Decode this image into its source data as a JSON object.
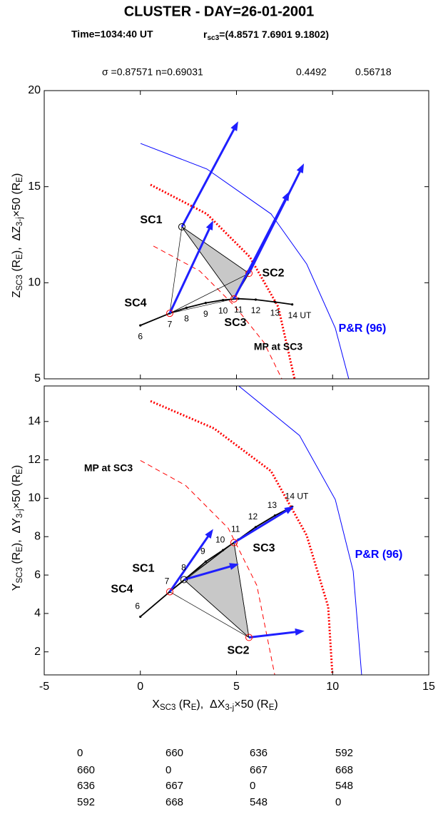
{
  "header": {
    "title": "CLUSTER - DAY=26-01-2001",
    "time": "Time=1034:40 UT",
    "position": [
      "r",
      "sc3",
      "=(4.8571 7.6901 9.1802)"
    ],
    "parameters": [
      "σ =0.87571 n=0.69031",
      "0.4492",
      "0.56718"
    ]
  },
  "chart_data": [
    {
      "type": "scatter",
      "xlim": [
        -5,
        15
      ],
      "ylim": [
        5,
        20
      ],
      "xticks": [
        -5,
        0,
        5,
        10,
        15
      ],
      "yticks": [
        5,
        10,
        15,
        20
      ],
      "xtick_labels": false,
      "ylabel": [
        "Z",
        "SC3",
        " (R",
        "E",
        "),  ΔZ",
        "3-j",
        "×50 (R",
        "E",
        ")"
      ],
      "vector_color": "#1f1fff",
      "spacecraft": [
        {
          "name": "SC1",
          "color": "#000000",
          "x": 2.16,
          "y": 12.91,
          "vector_x": 5.09,
          "vector_y": 18.4
        },
        {
          "name": "SC2",
          "color": "#ff0000",
          "x": 5.65,
          "y": 10.49,
          "vector_x": 8.51,
          "vector_y": 16.21
        },
        {
          "name": "SC3",
          "color": "#ff0000",
          "x": 4.87,
          "y": 9.16,
          "vector_x": 7.76,
          "vector_y": 14.76
        },
        {
          "name": "SC4",
          "color": "#ff0000",
          "x": 1.53,
          "y": 8.41,
          "vector_x": 3.79,
          "vector_y": 13.24
        }
      ],
      "trajectory": {
        "labels": [
          "6",
          "7",
          "8",
          "9",
          "10",
          "11",
          "12",
          "13",
          "14 UT"
        ],
        "x": [
          0,
          1.53,
          2.4,
          3.4,
          4.3,
          5.1,
          6.0,
          7.0,
          7.9
        ],
        "y": [
          7.78,
          8.41,
          8.7,
          8.95,
          9.1,
          9.17,
          9.12,
          9.0,
          8.87
        ]
      },
      "boundaries": [
        {
          "name": "P&R (96)",
          "color": "#0000ff",
          "label_color": "#0000ff",
          "style": "solid",
          "x": [
            0.01,
            3.46,
            6.8,
            8.65,
            10.14,
            10.84
          ],
          "y": [
            17.25,
            15.92,
            13.58,
            10.98,
            7.64,
            5.0
          ]
        },
        {
          "name": "MP at SC3",
          "color": "#ff0000",
          "label_color": "#000000",
          "style": "dashed",
          "x": [
            0.68,
            3.09,
            4.94,
            6.43,
            7.36
          ],
          "y": [
            11.91,
            10.61,
            8.75,
            6.89,
            5.0
          ]
        },
        {
          "color": "#ff0000",
          "style": "dotted",
          "x": [
            0.53,
            3.46,
            5.69,
            7.17,
            8.02
          ],
          "y": [
            15.1,
            13.58,
            11.35,
            8.75,
            5.0
          ]
        }
      ]
    },
    {
      "type": "scatter",
      "xlim": [
        -5,
        15
      ],
      "ylim": [
        0.8,
        15.85
      ],
      "xticks": [
        -5,
        0,
        5,
        10,
        15
      ],
      "yticks": [
        2,
        4,
        6,
        8,
        10,
        12,
        14
      ],
      "xtick_labels": true,
      "ylabel": [
        "Y",
        "SC3",
        " (R",
        "E",
        "),  ΔY",
        "3-j",
        "×50 (R",
        "E",
        ")"
      ],
      "xlabel": [
        "X",
        "SC3",
        " (R",
        "E",
        "),  ΔX",
        "3-j",
        "×50 (R",
        "E",
        ")"
      ],
      "vector_color": "#1f1fff",
      "spacecraft": [
        {
          "name": "SC1",
          "color": "#000000",
          "x": 2.27,
          "y": 5.76,
          "vector_x": 5.13,
          "vector_y": 6.58
        },
        {
          "name": "SC2",
          "color": "#ff0000",
          "x": 5.65,
          "y": 2.75,
          "vector_x": 8.54,
          "vector_y": 3.09
        },
        {
          "name": "SC3",
          "color": "#ff0000",
          "x": 4.87,
          "y": 7.69,
          "vector_x": 7.99,
          "vector_y": 9.59
        },
        {
          "name": "SC4",
          "color": "#ff0000",
          "x": 1.53,
          "y": 5.13,
          "vector_x": 3.79,
          "vector_y": 8.4
        }
      ],
      "trajectory": {
        "labels": [
          "6",
          "7",
          "8",
          "9",
          "10",
          "11",
          "12",
          "13",
          "14 UT"
        ],
        "x": [
          0,
          1.53,
          2.4,
          3.4,
          4.3,
          5.1,
          6.0,
          7.0,
          7.9
        ],
        "y": [
          3.83,
          5.13,
          5.85,
          6.7,
          7.3,
          7.85,
          8.5,
          9.1,
          9.56
        ]
      },
      "boundaries": [
        {
          "name": "P&R (96)",
          "color": "#0000ff",
          "label_color": "#0000ff",
          "style": "solid",
          "x": [
            5.13,
            8.28,
            10.14,
            11.07,
            11.51
          ],
          "y": [
            15.84,
            13.27,
            9.93,
            6.21,
            0.8
          ]
        },
        {
          "name": "MP at SC3",
          "color": "#ff0000",
          "label_color": "#000000",
          "style": "dashed",
          "x": [
            0.0,
            2.35,
            4.57,
            6.06,
            6.99
          ],
          "y": [
            11.97,
            10.67,
            8.44,
            5.46,
            0.8
          ]
        },
        {
          "color": "#ff0000",
          "style": "dotted",
          "x": [
            0.53,
            3.83,
            6.8,
            8.65,
            9.77,
            9.99
          ],
          "y": [
            15.06,
            13.64,
            11.41,
            8.07,
            4.35,
            0.8
          ]
        }
      ]
    }
  ],
  "table": {
    "rows": [
      [
        0,
        660,
        636,
        592
      ],
      [
        660,
        0,
        667,
        668
      ],
      [
        636,
        667,
        0,
        548
      ],
      [
        592,
        668,
        548,
        0
      ]
    ]
  }
}
